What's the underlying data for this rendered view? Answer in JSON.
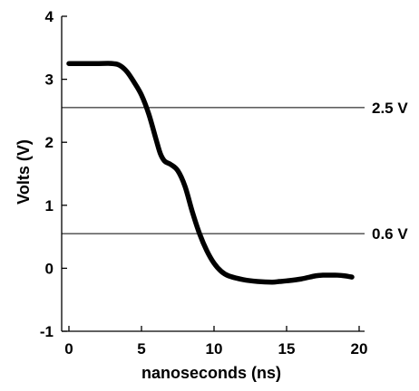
{
  "chart_data": {
    "type": "line",
    "title": "",
    "xlabel": "nanoseconds (ns)",
    "ylabel": "Volts (V)",
    "xlim": [
      0,
      20
    ],
    "ylim": [
      -1,
      4
    ],
    "x_ticks": [
      "0",
      "5",
      "10",
      "15",
      "20"
    ],
    "y_ticks": [
      "-1",
      "0",
      "1",
      "2",
      "3",
      "4"
    ],
    "grid": false,
    "legend": "none",
    "series": [
      {
        "color": "#000000",
        "x": [
          0,
          1,
          2,
          3,
          3.5,
          4,
          4.5,
          5,
          5.5,
          6,
          6.3,
          6.6,
          7,
          7.5,
          8,
          8.5,
          9,
          9.5,
          10,
          10.5,
          11,
          12,
          13,
          14,
          14.5,
          15,
          16,
          17,
          17.5,
          18,
          18.5,
          19,
          19.5
        ],
        "y": [
          3.25,
          3.25,
          3.25,
          3.25,
          3.22,
          3.12,
          2.95,
          2.75,
          2.45,
          2.05,
          1.82,
          1.7,
          1.65,
          1.55,
          1.3,
          0.9,
          0.55,
          0.28,
          0.08,
          -0.05,
          -0.12,
          -0.18,
          -0.21,
          -0.22,
          -0.21,
          -0.2,
          -0.17,
          -0.12,
          -0.11,
          -0.11,
          -0.11,
          -0.12,
          -0.14
        ]
      }
    ],
    "reference_lines": [
      {
        "y": 2.55,
        "label": "2.5 V"
      },
      {
        "y": 0.55,
        "label": "0.6 V"
      }
    ]
  }
}
